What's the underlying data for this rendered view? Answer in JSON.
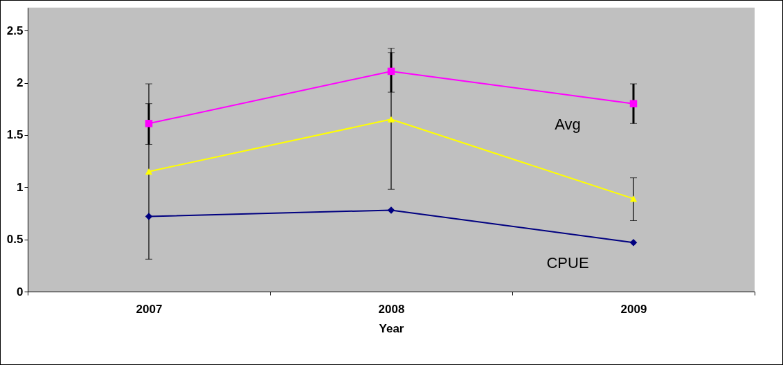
{
  "chart_data": {
    "type": "line",
    "xlabel": "Year",
    "categories": [
      "2007",
      "2008",
      "2009"
    ],
    "series": [
      {
        "name": "Avg",
        "color": "#ff00ff",
        "values": [
          1.61,
          2.11,
          1.8
        ],
        "errors": [
          [
            1.41,
            1.8
          ],
          [
            1.91,
            2.29
          ],
          [
            1.61,
            1.99
          ]
        ],
        "marker": "square"
      },
      {
        "color": "#ffff00",
        "values": [
          1.15,
          1.65,
          0.89
        ],
        "errors": [
          [
            0.31,
            1.99
          ],
          [
            0.98,
            2.33
          ],
          [
            0.68,
            1.09
          ]
        ],
        "marker": "triangle"
      },
      {
        "name": "CPUE",
        "color": "#000080",
        "values": [
          0.72,
          0.78,
          0.47
        ],
        "marker": "diamond"
      }
    ],
    "ylim": [
      0,
      2.72
    ],
    "yticks": [
      0,
      0.5,
      1,
      1.5,
      2,
      2.5
    ],
    "grid": false,
    "legend": false
  }
}
